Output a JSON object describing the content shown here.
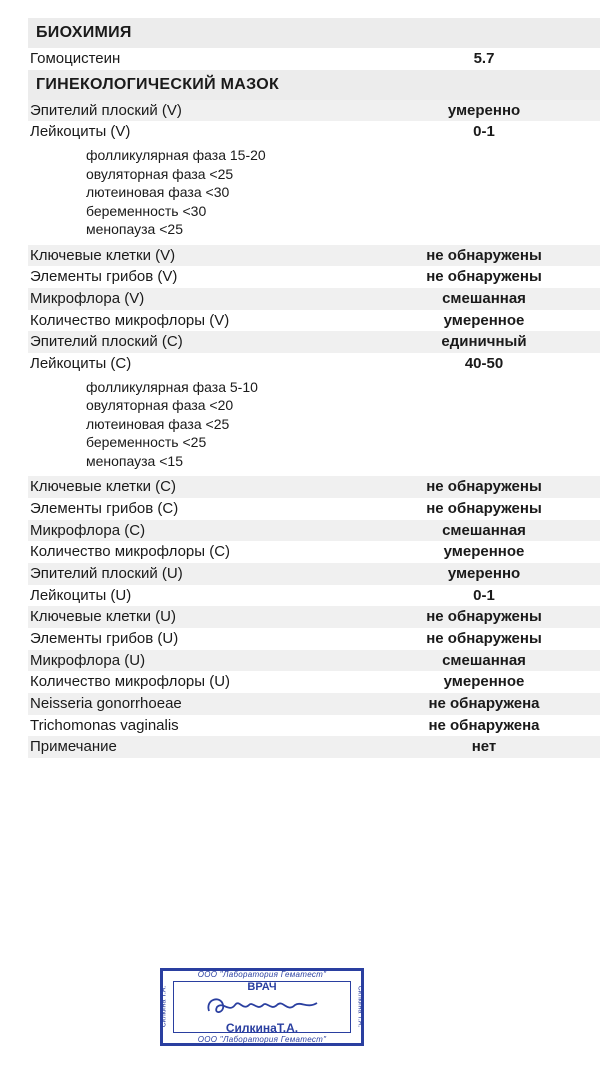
{
  "biochem": {
    "title": "БИОХИМИЯ",
    "rows": [
      {
        "label": "Гомоцистеин",
        "value": "5.7"
      }
    ]
  },
  "gyn": {
    "title": "ГИНЕКОЛОГИЧЕСКИЙ МАЗОК",
    "rows_v1": [
      {
        "label": "Эпителий плоский (V)",
        "value": "умеренно"
      },
      {
        "label": "Лейкоциты (V)",
        "value": "0-1"
      }
    ],
    "refs_v": [
      "фолликулярная фаза 15-20",
      "овуляторная фаза <25",
      "лютеиновая фаза <30",
      "беременность <30",
      "менопауза <25"
    ],
    "rows_v2": [
      {
        "label": "Ключевые клетки (V)",
        "value": "не обнаружены"
      },
      {
        "label": "Элементы грибов (V)",
        "value": "не обнаружены"
      },
      {
        "label": "Микрофлора (V)",
        "value": "смешанная"
      },
      {
        "label": "Количество микрофлоры (V)",
        "value": "умеренное"
      },
      {
        "label": "Эпителий плоский (С)",
        "value": "единичный"
      },
      {
        "label": "Лейкоциты (С)",
        "value": "40-50"
      }
    ],
    "refs_c": [
      "фолликулярная фаза  5-10",
      "овуляторная фаза <20",
      "лютеиновая фаза <25",
      "беременность <25",
      "менопауза <15"
    ],
    "rows_c": [
      {
        "label": "Ключевые клетки (С)",
        "value": "не обнаружены"
      },
      {
        "label": "Элементы грибов (С)",
        "value": "не обнаружены"
      },
      {
        "label": "Микрофлора (С)",
        "value": "смешанная"
      },
      {
        "label": "Количество микрофлоры (С)",
        "value": "умеренное"
      },
      {
        "label": "Эпителий плоский (U)",
        "value": "умеренно"
      },
      {
        "label": "Лейкоциты (U)",
        "value": "0-1"
      },
      {
        "label": "Ключевые клетки (U)",
        "value": "не обнаружены"
      },
      {
        "label": "Элементы грибов (U)",
        "value": "не обнаружены"
      },
      {
        "label": "Микрофлора (U)",
        "value": "смешанная"
      },
      {
        "label": "Количество микрофлоры (U)",
        "value": "умеренное"
      },
      {
        "label": "Neisseria gonorrhoeae",
        "value": "не обнаружена"
      },
      {
        "label": "Trichomonas vaginalis",
        "value": "не обнаружена"
      },
      {
        "label": "Примечание",
        "value": "нет"
      }
    ]
  },
  "stamp": {
    "role": "ВРАЧ",
    "name": "СилкинаТ.А.",
    "org_top": "ООО \"Лаборатория Гематест\"",
    "org_bottom": "ООО \"Лаборатория Гематест\"",
    "side": "Силкина Т.А.",
    "color": "#2a3fa0"
  }
}
